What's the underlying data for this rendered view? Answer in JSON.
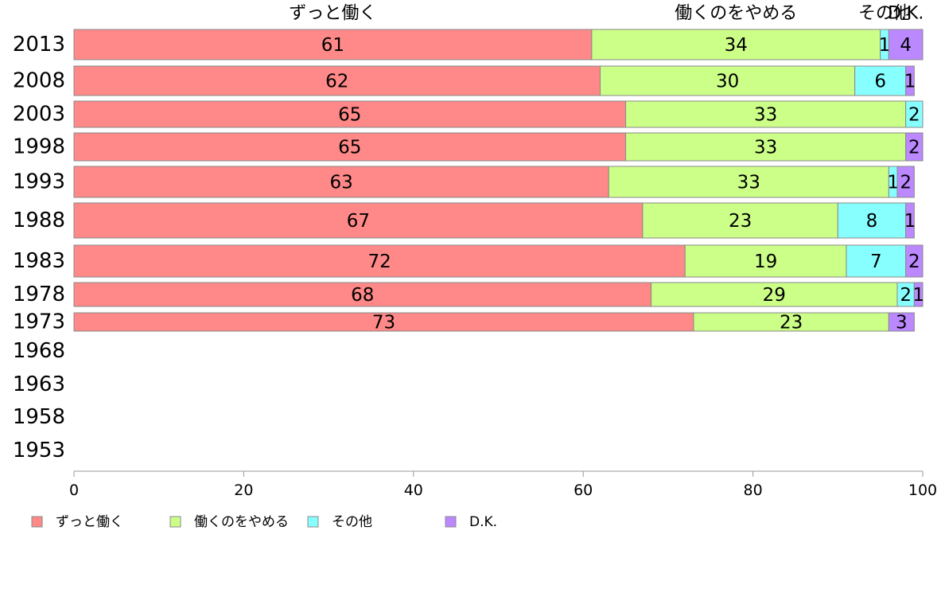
{
  "chart_data": {
    "type": "bar",
    "orientation": "horizontal",
    "stacked": true,
    "categories": [
      "2013",
      "2008",
      "2003",
      "1998",
      "1993",
      "1988",
      "1983",
      "1978",
      "1973",
      "1968",
      "1963",
      "1958",
      "1953"
    ],
    "series": [
      {
        "name": "ずっと働く",
        "color": "#ff8888",
        "values": [
          61,
          62,
          65,
          65,
          63,
          67,
          72,
          68,
          73,
          null,
          null,
          null,
          null
        ]
      },
      {
        "name": "働くのをやめる",
        "color": "#ccff88",
        "values": [
          34,
          30,
          33,
          33,
          33,
          23,
          19,
          29,
          23,
          null,
          null,
          null,
          null
        ]
      },
      {
        "name": "その他",
        "color": "#88ffff",
        "values": [
          1,
          6,
          2,
          0,
          1,
          8,
          7,
          2,
          0,
          null,
          null,
          null,
          null
        ]
      },
      {
        "name": "D.K.",
        "color": "#bb88ff",
        "values": [
          4,
          1,
          0,
          2,
          2,
          1,
          2,
          1,
          3,
          null,
          null,
          null,
          null
        ]
      }
    ],
    "top_labels": [
      "ずっと働く",
      "働くのをやめる",
      "その他",
      "D.K."
    ],
    "xlim": [
      0,
      100
    ],
    "xticks": [
      "0",
      "20",
      "40",
      "60",
      "80",
      "100"
    ],
    "grid": false,
    "legend_position": "bottom"
  }
}
